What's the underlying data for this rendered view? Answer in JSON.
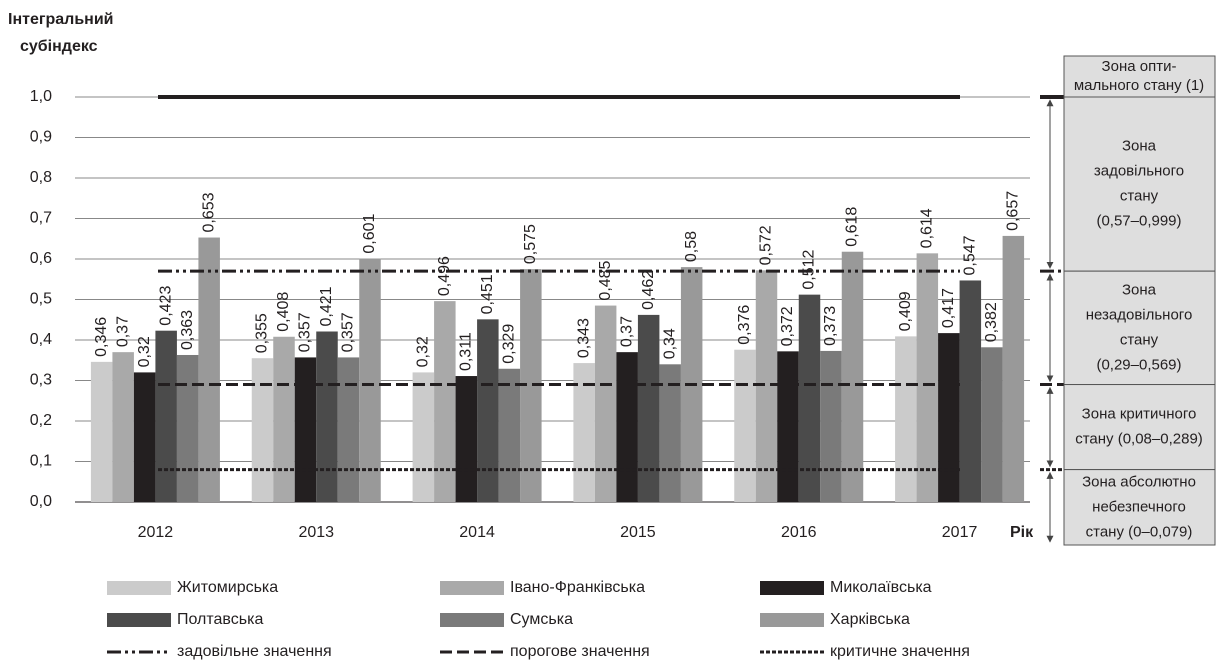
{
  "chart_data": {
    "type": "bar",
    "ylabel": [
      "Інтегральний",
      "субіндекс"
    ],
    "xlabel": "Рік",
    "categories": [
      "2012",
      "2013",
      "2014",
      "2015",
      "2016",
      "2017"
    ],
    "series": [
      {
        "name": "Житомирська",
        "color": "#cbcbcb",
        "values": [
          0.346,
          0.355,
          0.32,
          0.343,
          0.376,
          0.409
        ],
        "value_labels": [
          "0,346",
          "0,355",
          "0,32",
          "0,343",
          "0,376",
          "0,409"
        ]
      },
      {
        "name": "Івано-Франківська",
        "color": "#a9a9a9",
        "values": [
          0.37,
          0.408,
          0.496,
          0.485,
          0.572,
          0.614
        ],
        "value_labels": [
          "0,37",
          "0,408",
          "0,496",
          "0,485",
          "0,572",
          "0,614"
        ]
      },
      {
        "name": "Миколаївська",
        "color": "#231f20",
        "values": [
          0.32,
          0.357,
          0.311,
          0.37,
          0.372,
          0.417
        ],
        "value_labels": [
          "0,32",
          "0,357",
          "0,311",
          "0,37",
          "0,372",
          "0,417"
        ]
      },
      {
        "name": "Полтавська",
        "color": "#4b4b4b",
        "values": [
          0.423,
          0.421,
          0.451,
          0.462,
          0.512,
          0.547
        ],
        "value_labels": [
          "0,423",
          "0,421",
          "0,451",
          "0,462",
          "0,512",
          "0,547"
        ]
      },
      {
        "name": "Сумська",
        "color": "#7a7a7a",
        "values": [
          0.363,
          0.357,
          0.329,
          0.34,
          0.373,
          0.382
        ],
        "value_labels": [
          "0,363",
          "0,357",
          "0,329",
          "0,34",
          "0,373",
          "0,382"
        ]
      },
      {
        "name": "Харківська",
        "color": "#999999",
        "values": [
          0.653,
          0.601,
          0.575,
          0.58,
          0.618,
          0.657
        ],
        "value_labels": [
          "0,653",
          "0,601",
          "0,575",
          "0,58",
          "0,618",
          "0,657"
        ]
      }
    ],
    "reference_lines": [
      {
        "value": 1,
        "style": "solid"
      },
      {
        "name": "задовільне значення",
        "value": 0.57,
        "style": "dashdot"
      },
      {
        "name": "порогове значення",
        "value": 0.29,
        "style": "dashed"
      },
      {
        "name": "критичне значення",
        "value": 0.08,
        "style": "dotted"
      }
    ],
    "zones": [
      [
        "Зона опти-",
        "мального стану (1)"
      ],
      [
        "Зона",
        "задовільного",
        "стану",
        "(0,57–0,999)"
      ],
      [
        "Зона",
        "незадовільного",
        "стану",
        "(0,29–0,569)"
      ],
      [
        "Зона критичного",
        "стану (0,08–0,289)"
      ],
      [
        "Зона абсолютно",
        "небезпечного",
        "стану (0–0,079)"
      ]
    ],
    "ylim": [
      0,
      1
    ],
    "yticks": [
      {
        "value": 0,
        "label": "0,0"
      },
      {
        "value": 0.1,
        "label": "0,1"
      },
      {
        "value": 0.2,
        "label": "0,2"
      },
      {
        "value": 0.3,
        "label": "0,3"
      },
      {
        "value": 0.4,
        "label": "0,4"
      },
      {
        "value": 0.5,
        "label": "0,5"
      },
      {
        "value": 0.6,
        "label": "0,6"
      },
      {
        "value": 0.7,
        "label": "0,7"
      },
      {
        "value": 0.8,
        "label": "0,8"
      },
      {
        "value": 0.9,
        "label": "0,9"
      },
      {
        "value": 1,
        "label": "1,0"
      }
    ],
    "grid": true
  }
}
